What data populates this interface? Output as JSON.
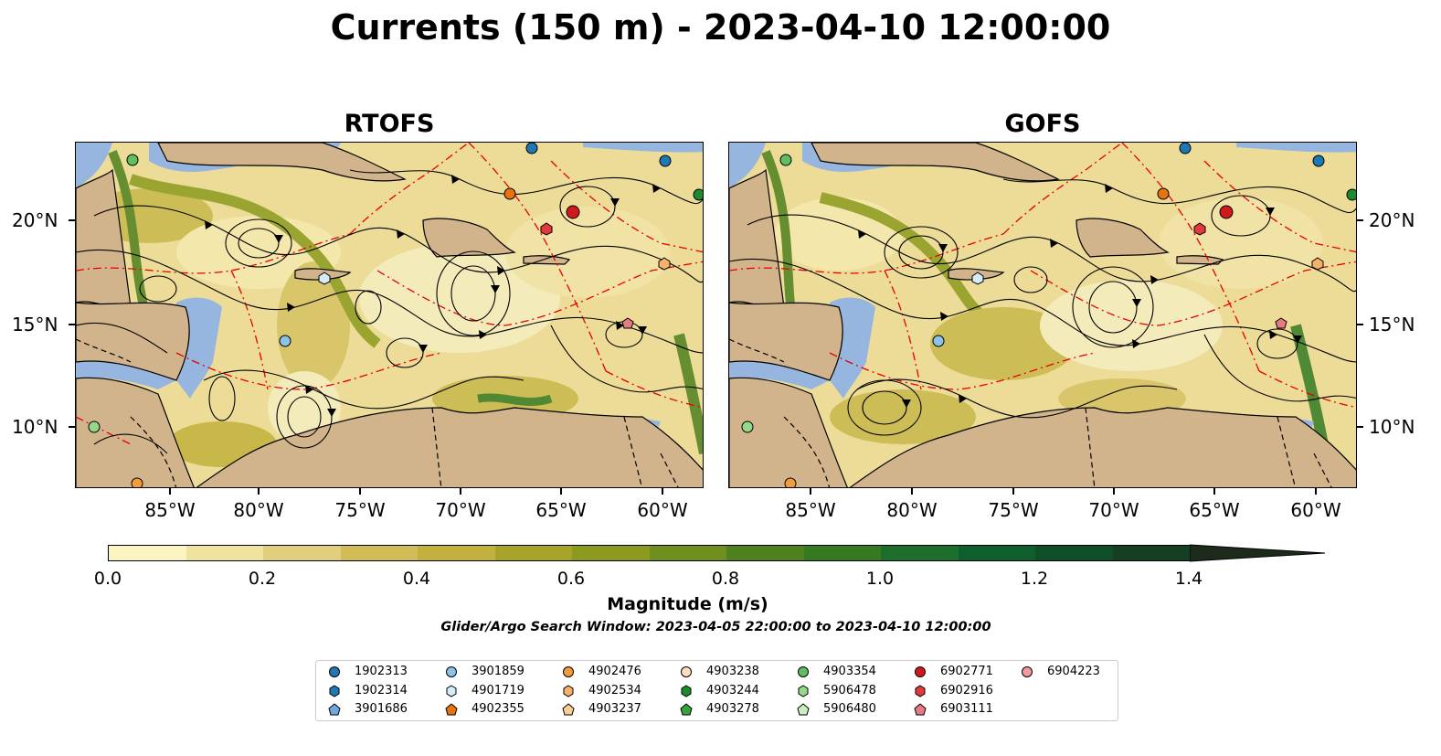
{
  "title": "Currents (150 m) - 2023-04-10 12:00:00",
  "panels": [
    {
      "title": "RTOFS"
    },
    {
      "title": "GOFS"
    }
  ],
  "x_ticks": [
    "85°W",
    "80°W",
    "75°W",
    "70°W",
    "65°W",
    "60°W"
  ],
  "y_ticks": [
    "20°N",
    "15°N",
    "10°N"
  ],
  "colorbar": {
    "label": "Magnitude (m/s)",
    "ticks": [
      "0.0",
      "0.2",
      "0.4",
      "0.6",
      "0.8",
      "1.0",
      "1.2",
      "1.4"
    ],
    "range": [
      0,
      1.6
    ],
    "colors": [
      "#fbf4c0",
      "#f0e3a0",
      "#e2cf7e",
      "#d2bc58",
      "#c2b13c",
      "#a8a42a",
      "#8c9b1f",
      "#6f8e1d",
      "#4f801f",
      "#357a23",
      "#1d6e2a",
      "#0f5f2c",
      "#0f4f28",
      "#153f23",
      "#1a3320",
      "#1e2a1c"
    ]
  },
  "search_window": "Glider/Argo Search Window: 2023-04-05 22:00:00 to 2023-04-10 12:00:00",
  "legend": [
    {
      "id": "1902313",
      "marker": "circle",
      "color": "#1f78b4"
    },
    {
      "id": "1902314",
      "marker": "hexagon",
      "color": "#1f78b4"
    },
    {
      "id": "3901686",
      "marker": "pentagon",
      "color": "#6fa8dc"
    },
    {
      "id": "3901859",
      "marker": "circle",
      "color": "#8cc1e8"
    },
    {
      "id": "4901719",
      "marker": "hexagon",
      "color": "#d4ebf8"
    },
    {
      "id": "4902355",
      "marker": "pentagon",
      "color": "#e8720c"
    },
    {
      "id": "4902476",
      "marker": "circle",
      "color": "#f49b3c"
    },
    {
      "id": "4902534",
      "marker": "hexagon",
      "color": "#f6b26b"
    },
    {
      "id": "4903237",
      "marker": "pentagon",
      "color": "#fbcd96"
    },
    {
      "id": "4903238",
      "marker": "circle",
      "color": "#fde0c2"
    },
    {
      "id": "4903244",
      "marker": "hexagon",
      "color": "#1e8a2e"
    },
    {
      "id": "4903278",
      "marker": "pentagon",
      "color": "#37a33f"
    },
    {
      "id": "4903354",
      "marker": "circle",
      "color": "#62bf60"
    },
    {
      "id": "5906478",
      "marker": "hexagon",
      "color": "#93d88b"
    },
    {
      "id": "5906480",
      "marker": "pentagon",
      "color": "#c9efc0"
    },
    {
      "id": "6902771",
      "marker": "circle",
      "color": "#d0191c"
    },
    {
      "id": "6902916",
      "marker": "hexagon",
      "color": "#e03a3c"
    },
    {
      "id": "6903111",
      "marker": "pentagon",
      "color": "#e77b83"
    },
    {
      "id": "6904223",
      "marker": "circle",
      "color": "#f29ba2"
    }
  ],
  "colors": {
    "land": "#d2b48c",
    "shelf": "#96b6e0",
    "eez": "#e60000",
    "streamline": "#000000"
  }
}
